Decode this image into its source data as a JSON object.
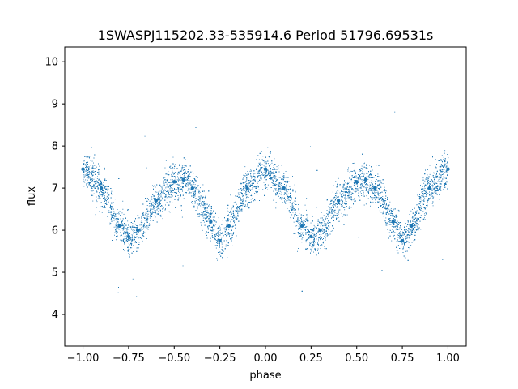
{
  "chart_data": {
    "type": "scatter",
    "title": "1SWASPJ115202.33-535914.6 Period 51796.69531s",
    "xlabel": "phase",
    "ylabel": "flux",
    "xlim": [
      -1.1,
      1.1
    ],
    "ylim": [
      3.25,
      10.35
    ],
    "x_ticks": [
      -1.0,
      -0.75,
      -0.5,
      -0.25,
      0.0,
      0.25,
      0.5,
      0.75,
      1.0
    ],
    "x_tick_labels": [
      "−1.00",
      "−0.75",
      "−0.50",
      "−0.25",
      "0.00",
      "0.25",
      "0.50",
      "0.75",
      "1.00"
    ],
    "y_ticks": [
      4,
      5,
      6,
      7,
      8,
      9,
      10
    ],
    "y_tick_labels": [
      "4",
      "5",
      "6",
      "7",
      "8",
      "9",
      "10"
    ],
    "grid": false,
    "marker_color": "#1f77b4",
    "series": [
      {
        "x": [
          -1.0,
          -0.9,
          -0.8,
          -0.75,
          -0.7,
          -0.6,
          -0.5,
          -0.45,
          -0.4,
          -0.3,
          -0.25,
          -0.2,
          -0.1,
          0.0,
          0.1,
          0.2,
          0.25,
          0.3,
          0.4,
          0.5,
          0.55,
          0.6,
          0.7,
          0.75,
          0.8,
          0.9,
          1.0
        ],
        "y": [
          7.45,
          7.0,
          6.1,
          5.85,
          6.0,
          6.7,
          7.15,
          7.2,
          7.0,
          6.2,
          5.75,
          6.1,
          7.0,
          7.45,
          7.0,
          6.1,
          5.85,
          6.0,
          6.7,
          7.15,
          7.2,
          7.0,
          6.2,
          5.75,
          6.1,
          7.0,
          7.45
        ]
      }
    ]
  }
}
